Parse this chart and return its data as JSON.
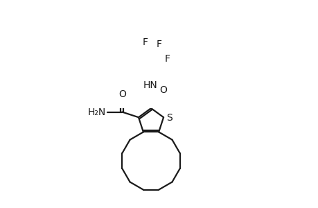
{
  "background_color": "#ffffff",
  "line_color": "#1a1a1a",
  "line_width": 1.6,
  "figsize": [
    4.6,
    3.0
  ],
  "dpi": 100,
  "xlim": [
    0,
    460
  ],
  "ylim": [
    0,
    300
  ]
}
